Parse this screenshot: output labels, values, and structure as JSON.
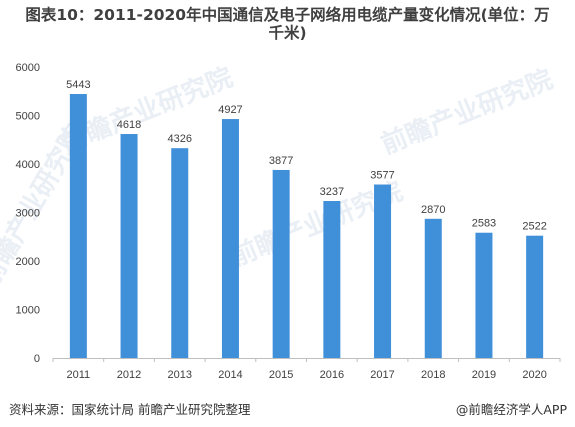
{
  "title_line1": "图表10：2011-2020年中国通信及电子网络用电缆产量变化情况(单位：万",
  "title_line2": "千米)",
  "source": "资料来源：国家统计局 前瞻产业研究院整理",
  "brand": "@前瞻经济学人APP",
  "watermark_text": "前瞻产业研究院",
  "bar_color": "#3F8FD9",
  "chart_data": {
    "type": "bar",
    "title": "图表10：2011-2020年中国通信及电子网络用电缆产量变化情况(单位：万千米)",
    "categories": [
      "2011",
      "2012",
      "2013",
      "2014",
      "2015",
      "2016",
      "2017",
      "2018",
      "2019",
      "2020"
    ],
    "values": [
      5443,
      4618,
      4326,
      4927,
      3877,
      3237,
      3577,
      2870,
      2583,
      2522
    ],
    "data_labels": [
      "5443",
      "4618",
      "4326",
      "4927",
      "3877",
      "3237",
      "3577",
      "2870",
      "2583",
      "2522"
    ],
    "ylim": [
      0,
      6000
    ],
    "yticks": [
      "0",
      "1000",
      "2000",
      "3000",
      "4000",
      "5000",
      "6000"
    ],
    "ytick_values": [
      0,
      1000,
      2000,
      3000,
      4000,
      5000,
      6000
    ],
    "grid": false,
    "legend": "none"
  }
}
